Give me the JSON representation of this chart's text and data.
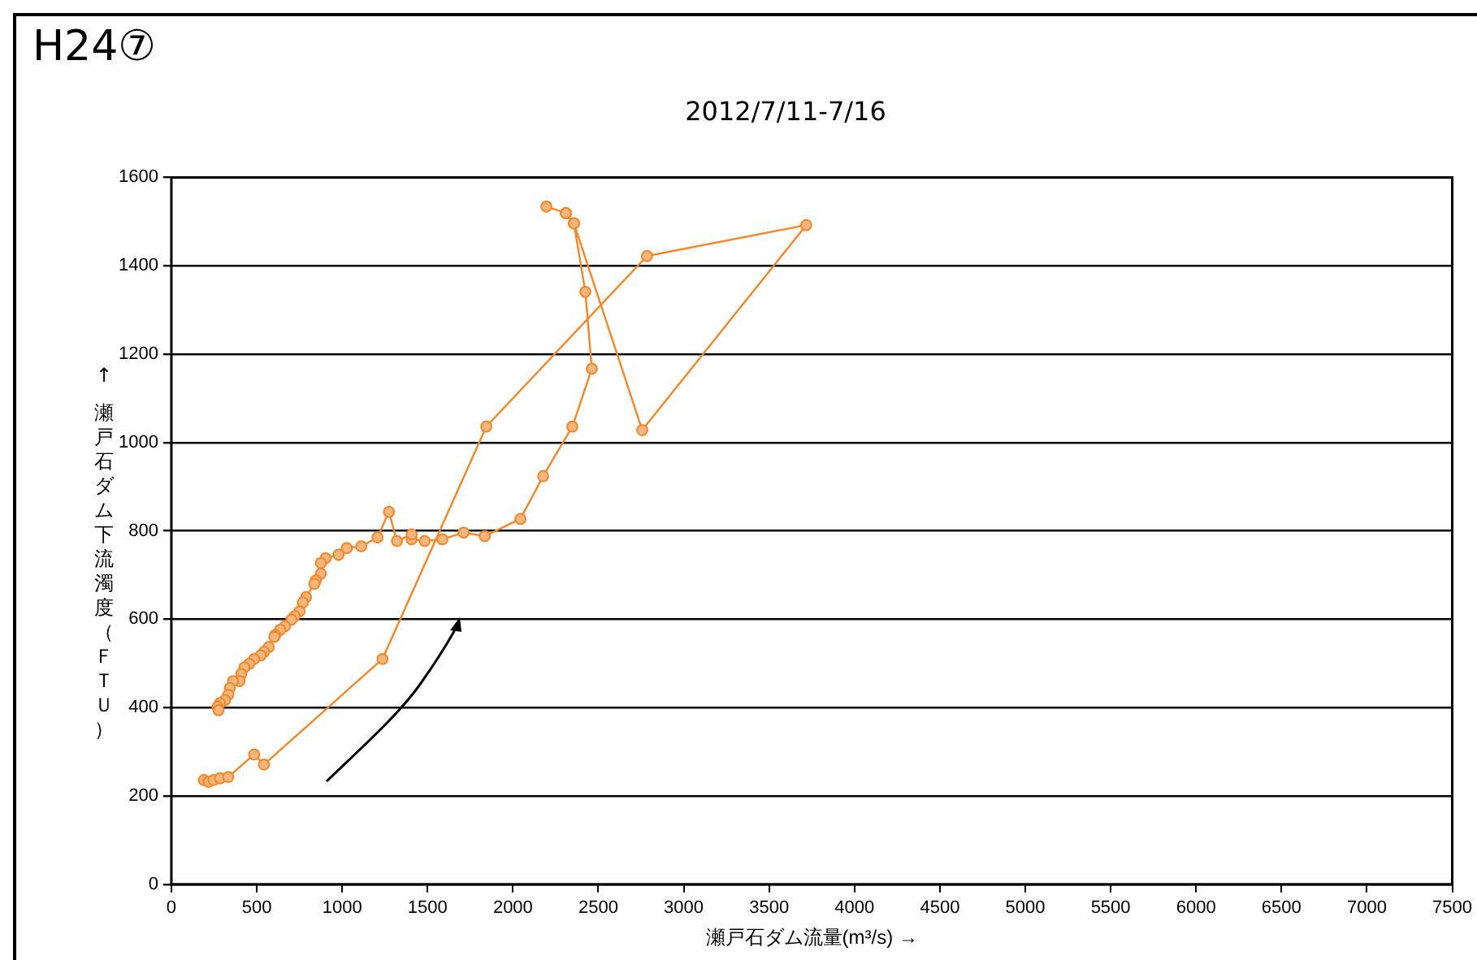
{
  "chart_data": {
    "type": "line",
    "title": "H24⑦",
    "subtitle": "2012/7/11-7/16",
    "xlabel": "瀬戸石ダム流量(m³/s) →",
    "ylabel": "↑ 瀬戸石ダム下流濁度（ＦＴＵ）",
    "series": [
      {
        "color": "#f4862a",
        "x": [
          190,
          219,
          247,
          285,
          333,
          485,
          542,
          1236,
          1844,
          2785,
          3717,
          2757,
          2357,
          2310,
          2196,
          2310,
          2357,
          2424,
          2462,
          2348,
          2177,
          2044,
          1835,
          1711,
          1587,
          1483,
          1407,
          1407,
          1321,
          1274,
          1207,
          1112,
          1027,
          979,
          903,
          875,
          875,
          846,
          837,
          789,
          770,
          751,
          722,
          703,
          665,
          637,
          608,
          603,
          570,
          542,
          523,
          485,
          456,
          428,
          409,
          399,
          361,
          342,
          333,
          314,
          285,
          270,
          276
        ],
        "values": [
          236,
          232,
          236,
          240,
          243,
          294,
          271,
          510,
          1036,
          1422,
          1492,
          1028,
          1496,
          1519,
          1534,
          1519,
          1496,
          1341,
          1167,
          1036,
          924,
          827,
          788,
          796,
          781,
          777,
          781,
          792,
          777,
          843,
          785,
          765,
          761,
          746,
          738,
          727,
          703,
          688,
          680,
          650,
          638,
          618,
          607,
          599,
          584,
          576,
          564,
          560,
          537,
          526,
          518,
          510,
          499,
          491,
          476,
          460,
          460,
          444,
          429,
          417,
          410,
          402,
          394
        ]
      }
    ],
    "xlim": [
      0,
      7500
    ],
    "xticks": [
      0,
      500,
      1000,
      1500,
      2000,
      2500,
      3000,
      3500,
      4000,
      4500,
      5000,
      5500,
      6000,
      6500,
      7000,
      7500
    ],
    "ylim": [
      0,
      1600
    ],
    "yticks": [
      0,
      200,
      400,
      600,
      800,
      1000,
      1200,
      1400,
      1600
    ],
    "grid": "y",
    "legend": false,
    "marker": "circle",
    "line_style": "solid"
  }
}
